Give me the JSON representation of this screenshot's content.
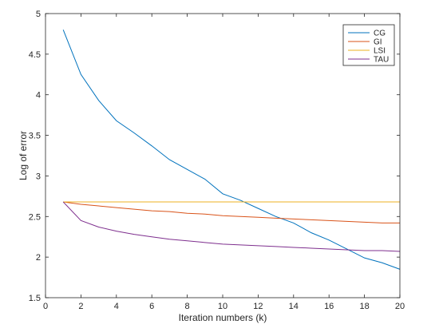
{
  "chart_data": {
    "type": "line",
    "title": "",
    "xlabel": "Iteration numbers (k)",
    "ylabel": "Log of error",
    "xlim": [
      0,
      20
    ],
    "ylim": [
      1.5,
      5
    ],
    "xticks": [
      0,
      2,
      4,
      6,
      8,
      10,
      12,
      14,
      16,
      18,
      20
    ],
    "yticks": [
      1.5,
      2,
      2.5,
      3,
      3.5,
      4,
      4.5,
      5
    ],
    "xtick_labels": [
      "0",
      "2",
      "4",
      "6",
      "8",
      "10",
      "12",
      "14",
      "16",
      "18",
      "20"
    ],
    "ytick_labels": [
      "1.5",
      "2",
      "2.5",
      "3",
      "3.5",
      "4",
      "4.5",
      "5"
    ],
    "grid": false,
    "legend_position": "top-right",
    "x": [
      1,
      2,
      3,
      4,
      5,
      6,
      7,
      8,
      9,
      10,
      11,
      12,
      13,
      14,
      15,
      16,
      17,
      18,
      19,
      20
    ],
    "series": [
      {
        "name": "CG",
        "color": "#0072BD",
        "values": [
          4.8,
          4.25,
          3.93,
          3.68,
          3.53,
          3.37,
          3.2,
          3.08,
          2.96,
          2.78,
          2.7,
          2.6,
          2.5,
          2.42,
          2.3,
          2.21,
          2.1,
          1.99,
          1.93,
          1.85
        ]
      },
      {
        "name": "GI",
        "color": "#D95319",
        "values": [
          2.68,
          2.65,
          2.63,
          2.61,
          2.59,
          2.57,
          2.56,
          2.54,
          2.53,
          2.51,
          2.5,
          2.49,
          2.48,
          2.47,
          2.46,
          2.45,
          2.44,
          2.43,
          2.42,
          2.42
        ]
      },
      {
        "name": "LSI",
        "color": "#EDB120",
        "values": [
          2.68,
          2.68,
          2.68,
          2.68,
          2.68,
          2.68,
          2.68,
          2.68,
          2.68,
          2.68,
          2.68,
          2.68,
          2.68,
          2.68,
          2.68,
          2.68,
          2.68,
          2.68,
          2.68,
          2.68
        ]
      },
      {
        "name": "TAU",
        "color": "#7E2F8E",
        "values": [
          2.68,
          2.45,
          2.37,
          2.32,
          2.28,
          2.25,
          2.22,
          2.2,
          2.18,
          2.16,
          2.15,
          2.14,
          2.13,
          2.12,
          2.11,
          2.1,
          2.09,
          2.08,
          2.08,
          2.07
        ]
      }
    ]
  }
}
